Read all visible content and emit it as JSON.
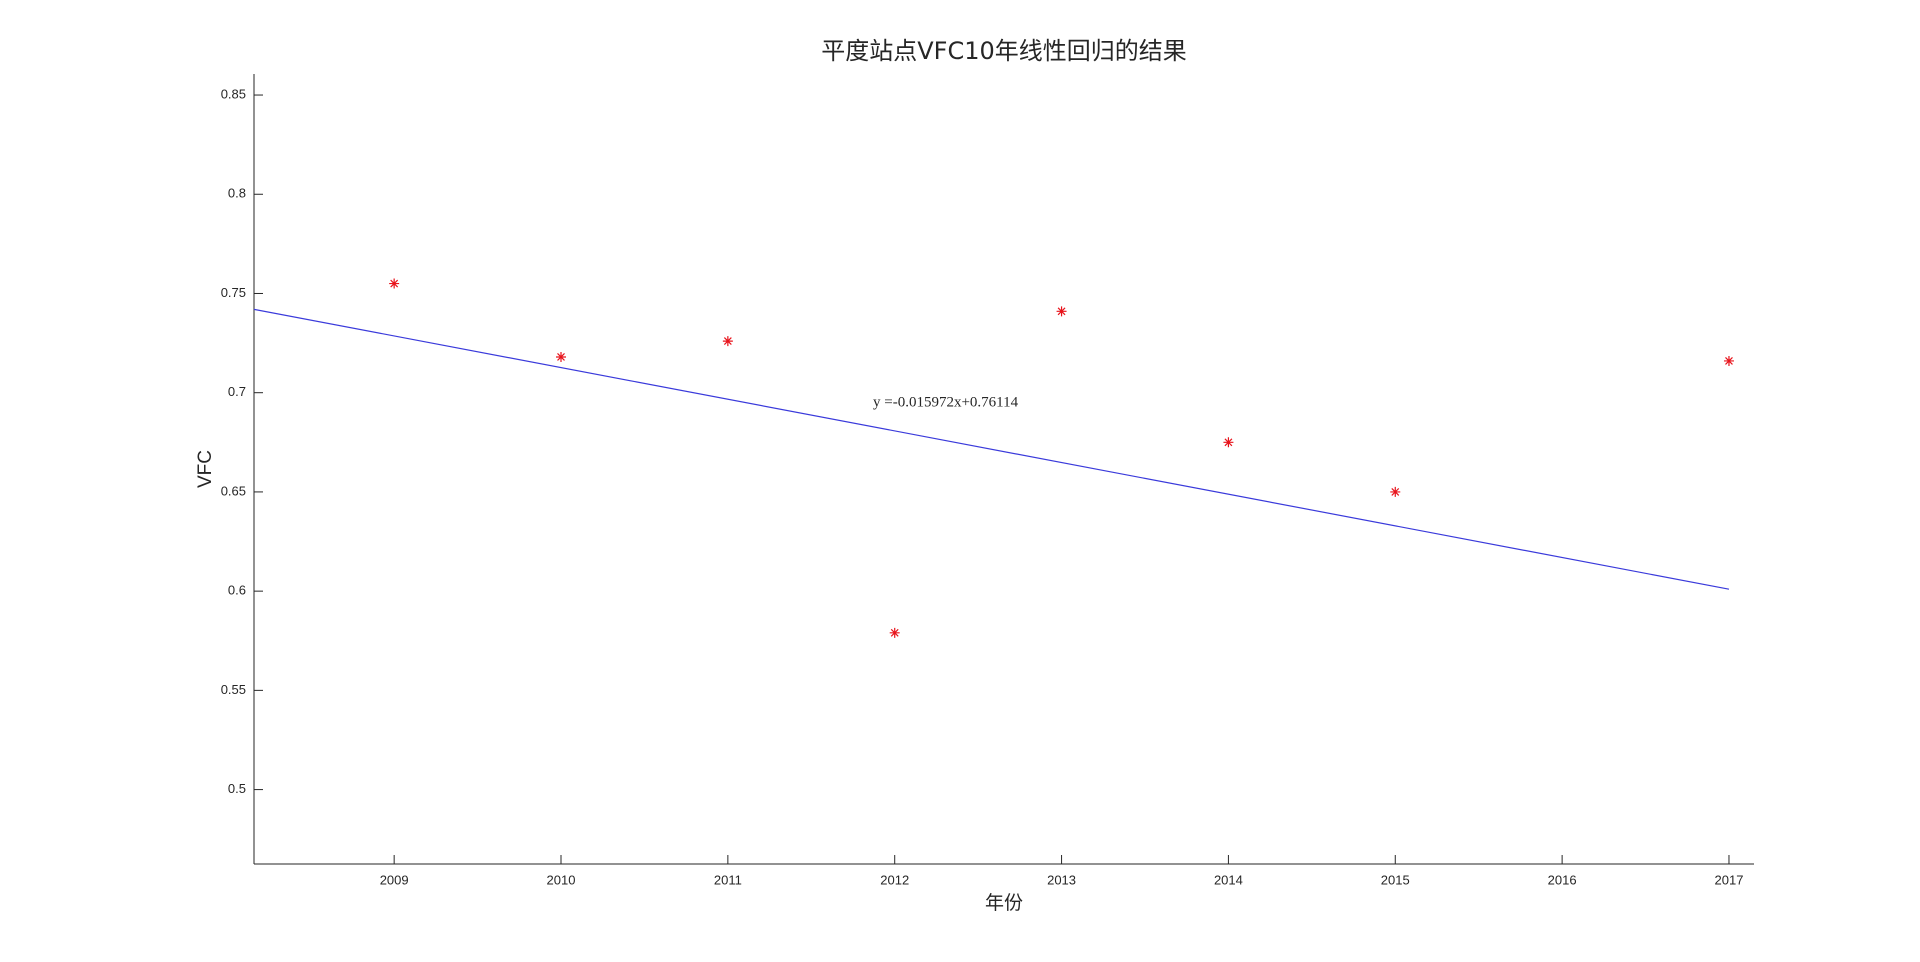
{
  "chart_data": {
    "type": "scatter",
    "title": "平度站点VFC10年线性回归的结果",
    "x_label": "年份",
    "y_label": "VFC",
    "annotation": "y =-0.015972x+0.76114",
    "series": [
      {
        "style": "marker",
        "marker": "*",
        "color": "#e8141c",
        "x": [
          2009,
          2010,
          2011,
          2012,
          2013,
          2014,
          2015,
          2017
        ],
        "values": [
          0.755,
          0.718,
          0.726,
          0.579,
          0.741,
          0.675,
          0.65,
          0.716
        ]
      },
      {
        "style": "line",
        "color": "#3a3adb",
        "x": [
          2008.16,
          2017
        ],
        "values": [
          0.742,
          0.601
        ]
      }
    ],
    "xlim": [
      2008.16,
      2017.15
    ],
    "xticks": [
      2009,
      2010,
      2011,
      2012,
      2013,
      2014,
      2015,
      2016,
      2017
    ],
    "ylim": [
      0.4625,
      0.8606
    ],
    "yticks": [
      0.5,
      0.55,
      0.6,
      0.65,
      0.7,
      0.75,
      0.8,
      0.85
    ],
    "grid": false
  }
}
